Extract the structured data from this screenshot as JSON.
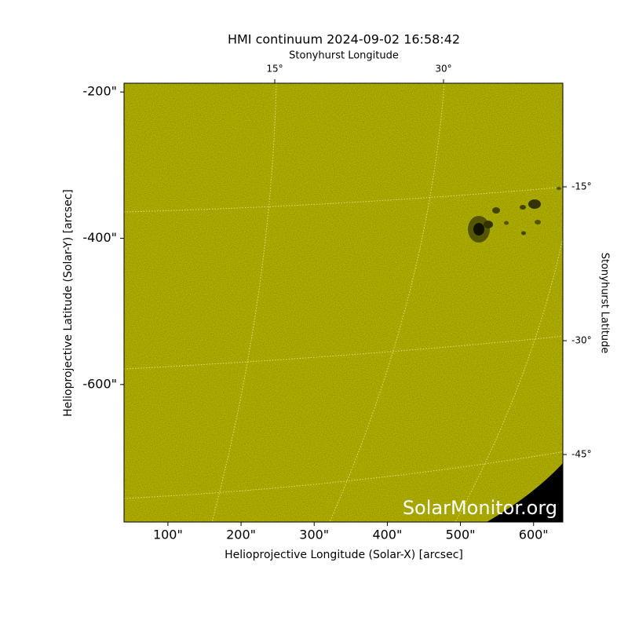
{
  "chart_data": {
    "type": "image",
    "title": "HMI continuum 2024-09-02 16:58:42",
    "xlabel": "Helioprojective Longitude (Solar-X) [arcsec]",
    "ylabel": "Helioprojective Latitude (Solar-Y) [arcsec]",
    "x2label": "Stonyhurst Longitude",
    "y2label": "Stonyhurst Latitude",
    "xlim": [
      40,
      640
    ],
    "ylim": [
      -788,
      -188
    ],
    "xticks": [
      {
        "value": 100,
        "label": "100\""
      },
      {
        "value": 200,
        "label": "200\""
      },
      {
        "value": 300,
        "label": "300\""
      },
      {
        "value": 400,
        "label": "400\""
      },
      {
        "value": 500,
        "label": "500\""
      },
      {
        "value": 600,
        "label": "600\""
      }
    ],
    "yticks": [
      {
        "value": -200,
        "label": "-200\""
      },
      {
        "value": -400,
        "label": "-400\""
      },
      {
        "value": -600,
        "label": "-600\""
      }
    ],
    "x2ticks": [
      {
        "value": 15,
        "label": "15°"
      },
      {
        "value": 30,
        "label": "30°"
      }
    ],
    "y2ticks": [
      {
        "value": -15,
        "label": "-15°"
      },
      {
        "value": -30,
        "label": "-30°"
      },
      {
        "value": -45,
        "label": "-45°"
      }
    ],
    "watermark": "SolarMonitor.org",
    "color": "#c9c900"
  }
}
